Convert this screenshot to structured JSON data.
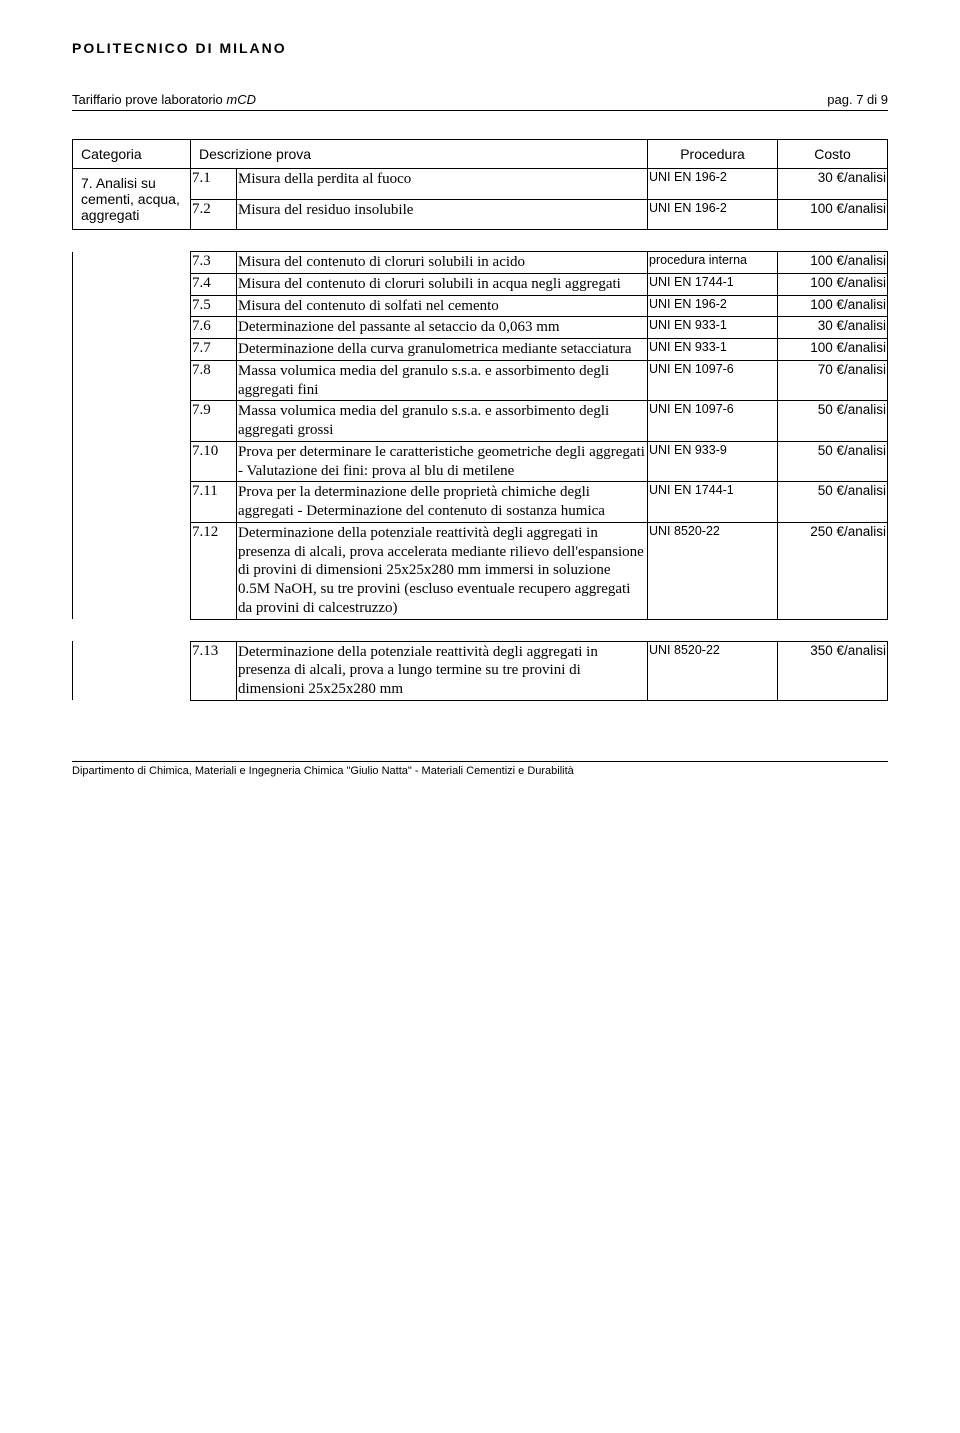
{
  "brand": "POLITECNICO DI MILANO",
  "header": {
    "title_prefix": "Tariffario prove laboratorio ",
    "title_ital": "mCD",
    "page_label": "pag. 7 di 9"
  },
  "columns": {
    "category": "Categoria",
    "description": "Descrizione prova",
    "procedure": "Procedura",
    "cost": "Costo"
  },
  "category": {
    "num": "7.",
    "label": "Analisi su cementi, acqua, aggregati"
  },
  "rows_group1": [
    {
      "n": "7.1",
      "desc": "Misura della perdita al fuoco",
      "proc": "UNI EN 196-2",
      "cost": "30 €/analisi"
    },
    {
      "n": "7.2",
      "desc": "Misura del residuo insolubile",
      "proc": "UNI EN 196-2",
      "cost": "100 €/analisi"
    }
  ],
  "rows_group2": [
    {
      "n": "7.3",
      "desc": "Misura del contenuto di cloruri solubili in acido",
      "proc": "procedura interna",
      "cost": "100 €/analisi"
    },
    {
      "n": "7.4",
      "desc": "Misura del contenuto di cloruri solubili in acqua negli aggregati",
      "proc": "UNI EN 1744-1",
      "cost": "100 €/analisi"
    },
    {
      "n": "7.5",
      "desc": "Misura del contenuto di solfati nel cemento",
      "proc": "UNI EN 196-2",
      "cost": "100 €/analisi"
    },
    {
      "n": "7.6",
      "desc": "Determinazione del passante al setaccio da 0,063 mm",
      "proc": "UNI EN 933-1",
      "cost": "30 €/analisi"
    },
    {
      "n": "7.7",
      "desc": "Determinazione della curva granulometrica mediante setacciatura",
      "proc": "UNI EN 933-1",
      "cost": "100 €/analisi"
    },
    {
      "n": "7.8",
      "desc": "Massa volumica media del granulo s.s.a. e assorbimento degli aggregati fini",
      "proc": "UNI EN 1097-6",
      "cost": "70 €/analisi"
    },
    {
      "n": "7.9",
      "desc": "Massa volumica media del granulo s.s.a. e assorbimento degli  aggregati grossi",
      "proc": "UNI EN 1097-6",
      "cost": "50 €/analisi"
    },
    {
      "n": "7.10",
      "desc": "Prova per determinare le caratteristiche geometriche degli aggregati - Valutazione dei fini: prova al blu di metilene",
      "proc": "UNI EN 933-9",
      "cost": "50 €/analisi"
    },
    {
      "n": "7.11",
      "desc": "Prova per la determinazione delle proprietà chimiche degli aggregati - Determinazione del contenuto di sostanza humica",
      "proc": "UNI EN 1744-1",
      "cost": "50 €/analisi"
    },
    {
      "n": "7.12",
      "desc": "Determinazione della potenziale reattività degli aggregati in presenza di alcali, prova accelerata mediante rilievo dell'espansione di provini di dimensioni 25x25x280 mm immersi in soluzione 0.5M NaOH, su tre provini (escluso eventuale recupero aggregati da provini di calcestruzzo)",
      "proc": "UNI 8520-22",
      "cost": "250 €/analisi"
    }
  ],
  "rows_group3": [
    {
      "n": "7.13",
      "desc": "Determinazione della potenziale reattività degli aggregati in presenza di alcali, prova a lungo termine su tre provini di dimensioni 25x25x280 mm",
      "proc": "UNI 8520-22",
      "cost": "350 €/analisi"
    }
  ],
  "footer": "Dipartimento di Chimica, Materiali e Ingegneria Chimica \"Giulio Natta\"  -  Materiali Cementizi e Durabilità"
}
